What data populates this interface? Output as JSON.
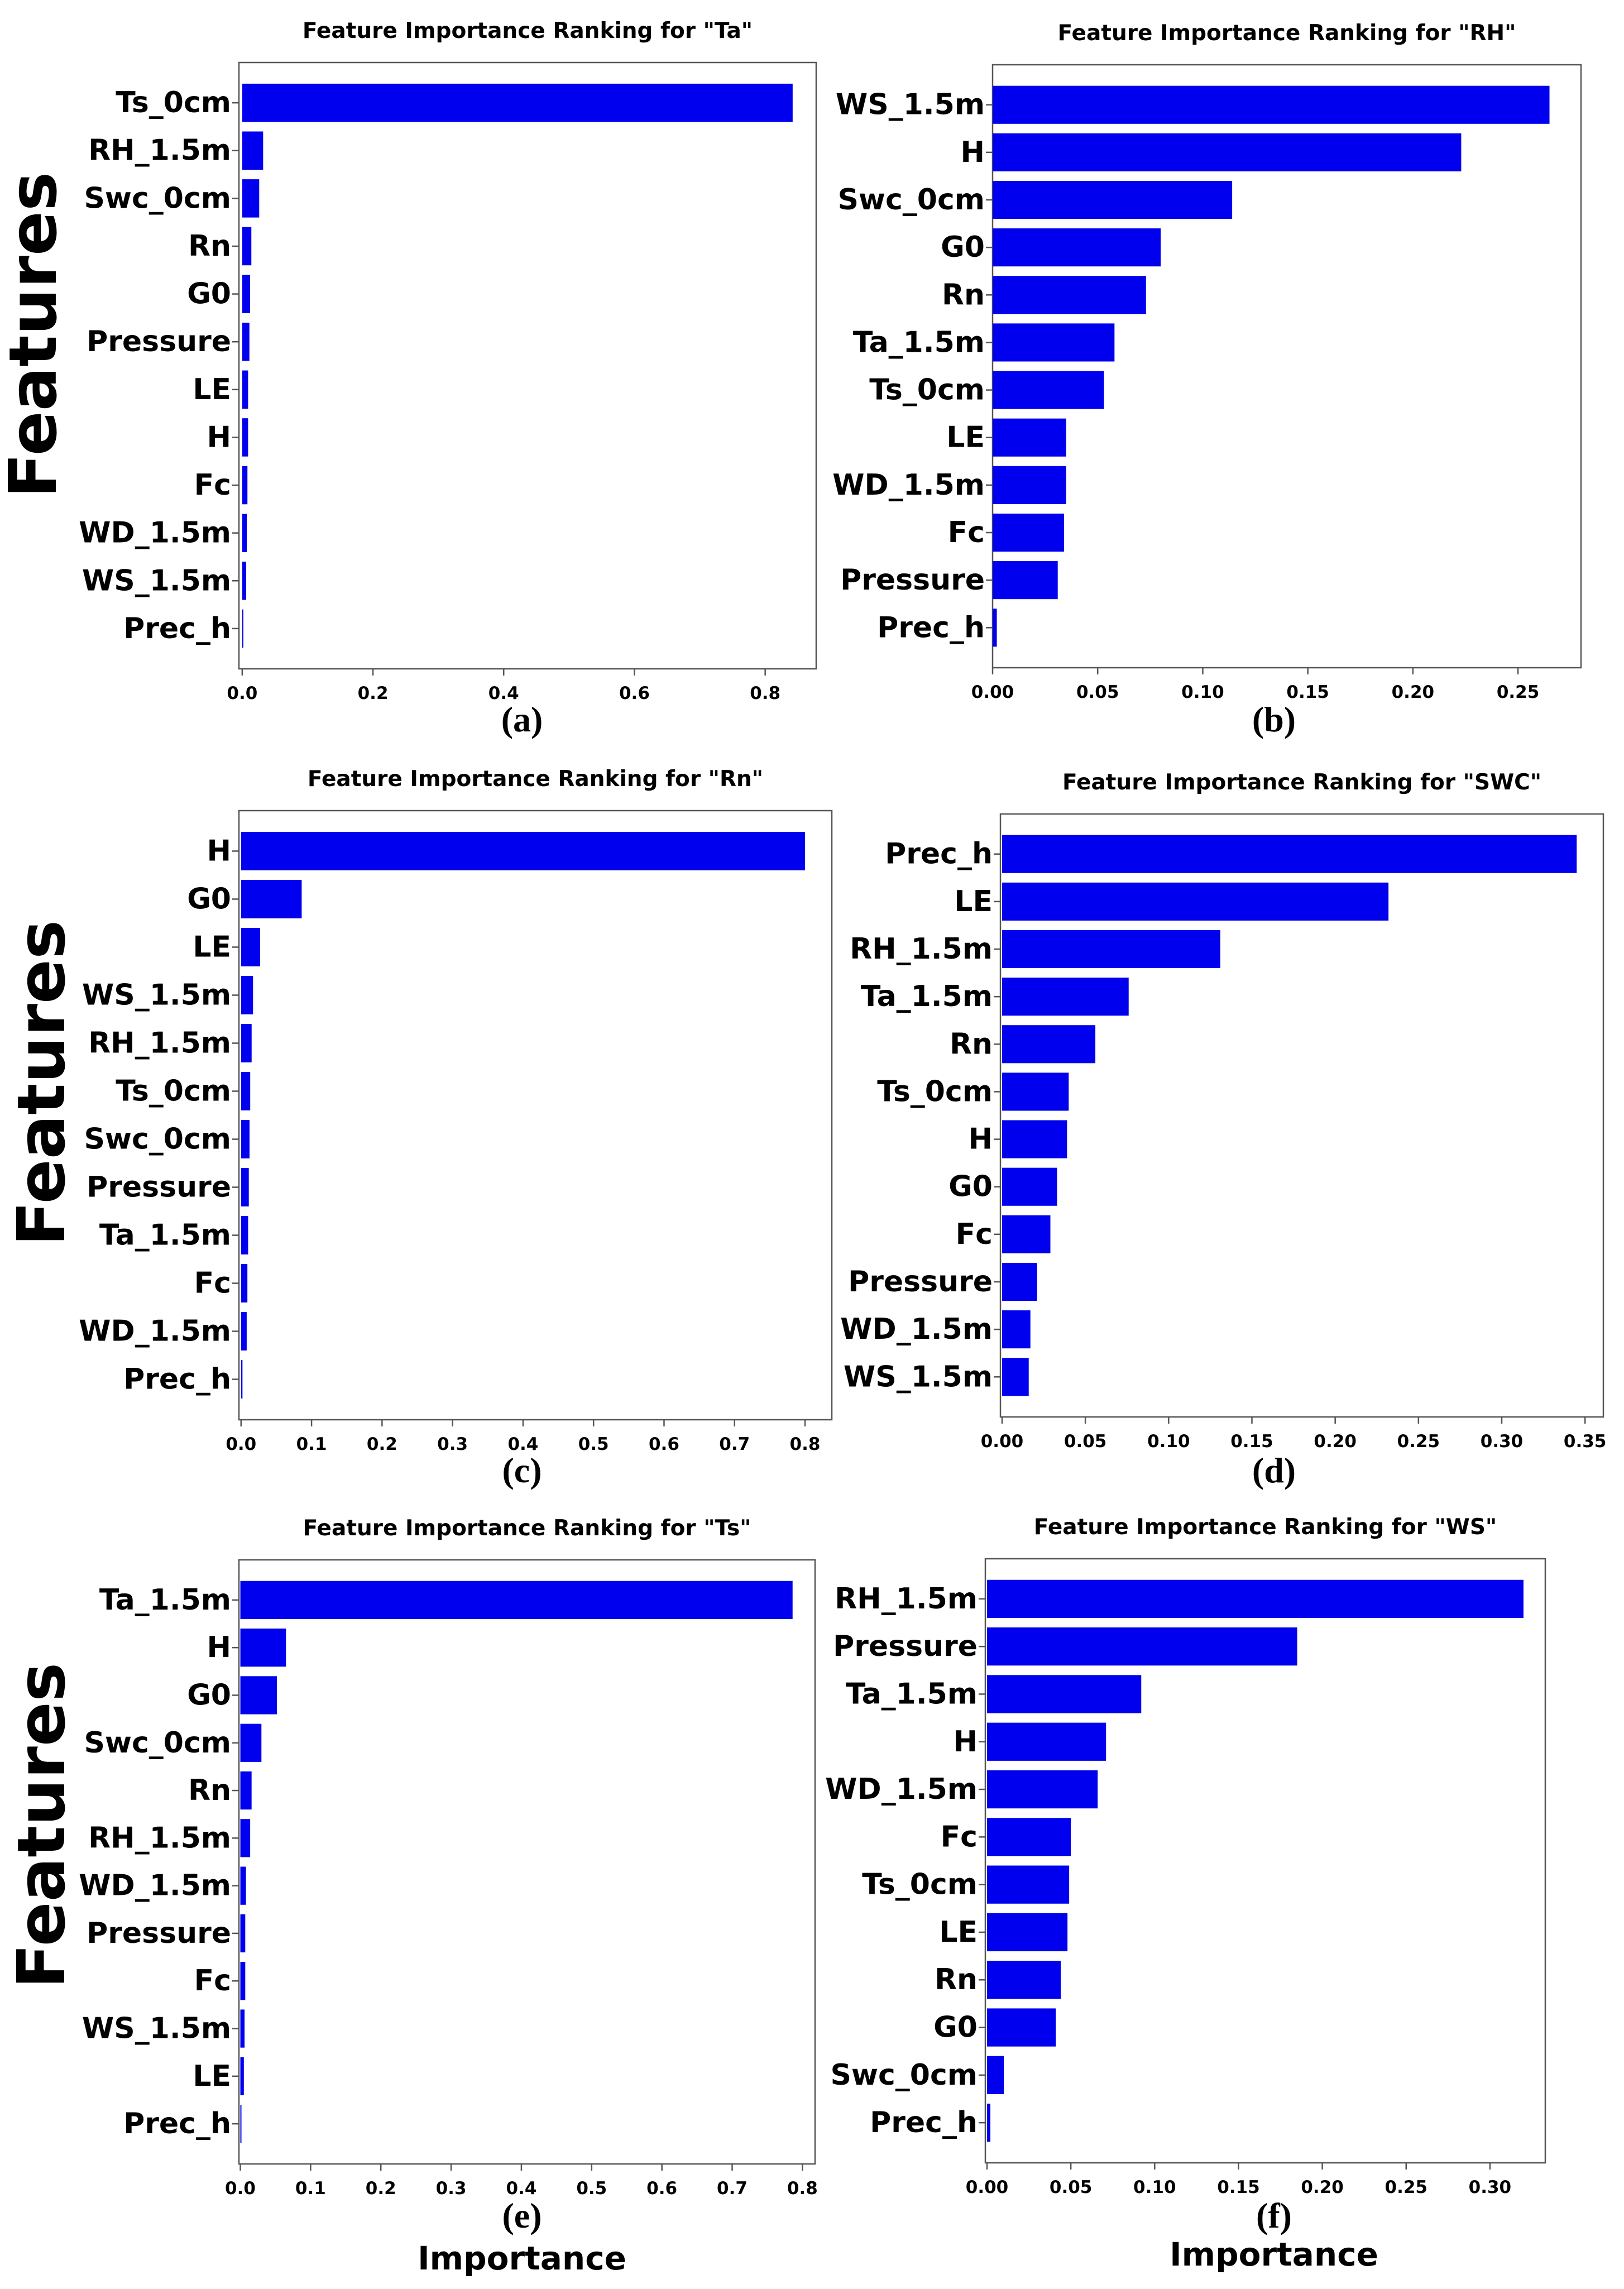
{
  "colors": {
    "bar": "#0000ee",
    "axis": "#555555",
    "text": "#000000"
  },
  "figure": {
    "y_axis_title": "Features",
    "x_axis_title": "Importance"
  },
  "chart_data": [
    {
      "type": "bar",
      "orientation": "horizontal",
      "title": "Feature Importance Ranking for \"Ta\"",
      "panel_label": "(a)",
      "categories": [
        "Ts_0cm",
        "RH_1.5m",
        "Swc_0cm",
        "Rn",
        "G0",
        "Pressure",
        "LE",
        "H",
        "Fc",
        "WD_1.5m",
        "WS_1.5m",
        "Prec_h"
      ],
      "values": [
        0.842,
        0.032,
        0.026,
        0.014,
        0.012,
        0.011,
        0.009,
        0.009,
        0.008,
        0.007,
        0.006,
        0.001
      ],
      "xlim": [
        -0.005,
        0.878
      ],
      "xticks": [
        0.0,
        0.2,
        0.4,
        0.6,
        0.8
      ],
      "xtick_labels": [
        "0.0",
        "0.2",
        "0.4",
        "0.6",
        "0.8"
      ],
      "grid": false
    },
    {
      "type": "bar",
      "orientation": "horizontal",
      "title": "Feature Importance Ranking for \"RH\"",
      "panel_label": "(b)",
      "categories": [
        "WS_1.5m",
        "H",
        "Swc_0cm",
        "G0",
        "Rn",
        "Ta_1.5m",
        "Ts_0cm",
        "LE",
        "WD_1.5m",
        "Fc",
        "Pressure",
        "Prec_h"
      ],
      "values": [
        0.265,
        0.223,
        0.114,
        0.08,
        0.073,
        0.058,
        0.053,
        0.035,
        0.035,
        0.034,
        0.031,
        0.002
      ],
      "xlim": [
        0.0,
        0.28
      ],
      "xticks": [
        0.0,
        0.05,
        0.1,
        0.15,
        0.2,
        0.25
      ],
      "xtick_labels": [
        "0.00",
        "0.05",
        "0.10",
        "0.15",
        "0.20",
        "0.25"
      ],
      "grid": false
    },
    {
      "type": "bar",
      "orientation": "horizontal",
      "title": "Feature Importance Ranking for \"Rn\"",
      "panel_label": "(c)",
      "categories": [
        "H",
        "G0",
        "LE",
        "WS_1.5m",
        "RH_1.5m",
        "Ts_0cm",
        "Swc_0cm",
        "Pressure",
        "Ta_1.5m",
        "Fc",
        "WD_1.5m",
        "Prec_h"
      ],
      "values": [
        0.8,
        0.086,
        0.027,
        0.017,
        0.015,
        0.013,
        0.012,
        0.011,
        0.01,
        0.009,
        0.008,
        0.002
      ],
      "xlim": [
        -0.003,
        0.838
      ],
      "xticks": [
        0.0,
        0.1,
        0.2,
        0.3,
        0.4,
        0.5,
        0.6,
        0.7,
        0.8
      ],
      "xtick_labels": [
        "0.0",
        "0.1",
        "0.2",
        "0.3",
        "0.4",
        "0.5",
        "0.6",
        "0.7",
        "0.8"
      ],
      "grid": false
    },
    {
      "type": "bar",
      "orientation": "horizontal",
      "title": "Feature Importance Ranking for \"SWC\"",
      "panel_label": "(d)",
      "categories": [
        "Prec_h",
        "LE",
        "RH_1.5m",
        "Ta_1.5m",
        "Rn",
        "Ts_0cm",
        "H",
        "G0",
        "Fc",
        "Pressure",
        "WD_1.5m",
        "WS_1.5m"
      ],
      "values": [
        0.345,
        0.232,
        0.131,
        0.076,
        0.056,
        0.04,
        0.039,
        0.033,
        0.029,
        0.021,
        0.017,
        0.016
      ],
      "xlim": [
        -0.001,
        0.361
      ],
      "xticks": [
        0.0,
        0.05,
        0.1,
        0.15,
        0.2,
        0.25,
        0.3,
        0.35
      ],
      "xtick_labels": [
        "0.00",
        "0.05",
        "0.10",
        "0.15",
        "0.20",
        "0.25",
        "0.30",
        "0.35"
      ],
      "grid": false
    },
    {
      "type": "bar",
      "orientation": "horizontal",
      "title": "Feature Importance Ranking for \"Ts\"",
      "panel_label": "(e)",
      "categories": [
        "Ta_1.5m",
        "H",
        "G0",
        "Swc_0cm",
        "Rn",
        "RH_1.5m",
        "WD_1.5m",
        "Pressure",
        "Fc",
        "WS_1.5m",
        "LE",
        "Prec_h"
      ],
      "values": [
        0.786,
        0.065,
        0.052,
        0.03,
        0.016,
        0.014,
        0.008,
        0.007,
        0.007,
        0.006,
        0.005,
        0.001
      ],
      "xlim": [
        -0.002,
        0.818
      ],
      "xticks": [
        0.0,
        0.1,
        0.2,
        0.3,
        0.4,
        0.5,
        0.6,
        0.7,
        0.8
      ],
      "xtick_labels": [
        "0.0",
        "0.1",
        "0.2",
        "0.3",
        "0.4",
        "0.5",
        "0.6",
        "0.7",
        "0.8"
      ],
      "grid": false
    },
    {
      "type": "bar",
      "orientation": "horizontal",
      "title": "Feature Importance Ranking for \"WS\"",
      "panel_label": "(f)",
      "categories": [
        "RH_1.5m",
        "Pressure",
        "Ta_1.5m",
        "H",
        "WD_1.5m",
        "Fc",
        "Ts_0cm",
        "LE",
        "Rn",
        "G0",
        "Swc_0cm",
        "Prec_h"
      ],
      "values": [
        0.32,
        0.185,
        0.092,
        0.071,
        0.066,
        0.05,
        0.049,
        0.048,
        0.044,
        0.041,
        0.01,
        0.002
      ],
      "xlim": [
        -0.001,
        0.333
      ],
      "xticks": [
        0.0,
        0.05,
        0.1,
        0.15,
        0.2,
        0.25,
        0.3
      ],
      "xtick_labels": [
        "0.00",
        "0.05",
        "0.10",
        "0.15",
        "0.20",
        "0.25",
        "0.30"
      ],
      "grid": false
    }
  ]
}
